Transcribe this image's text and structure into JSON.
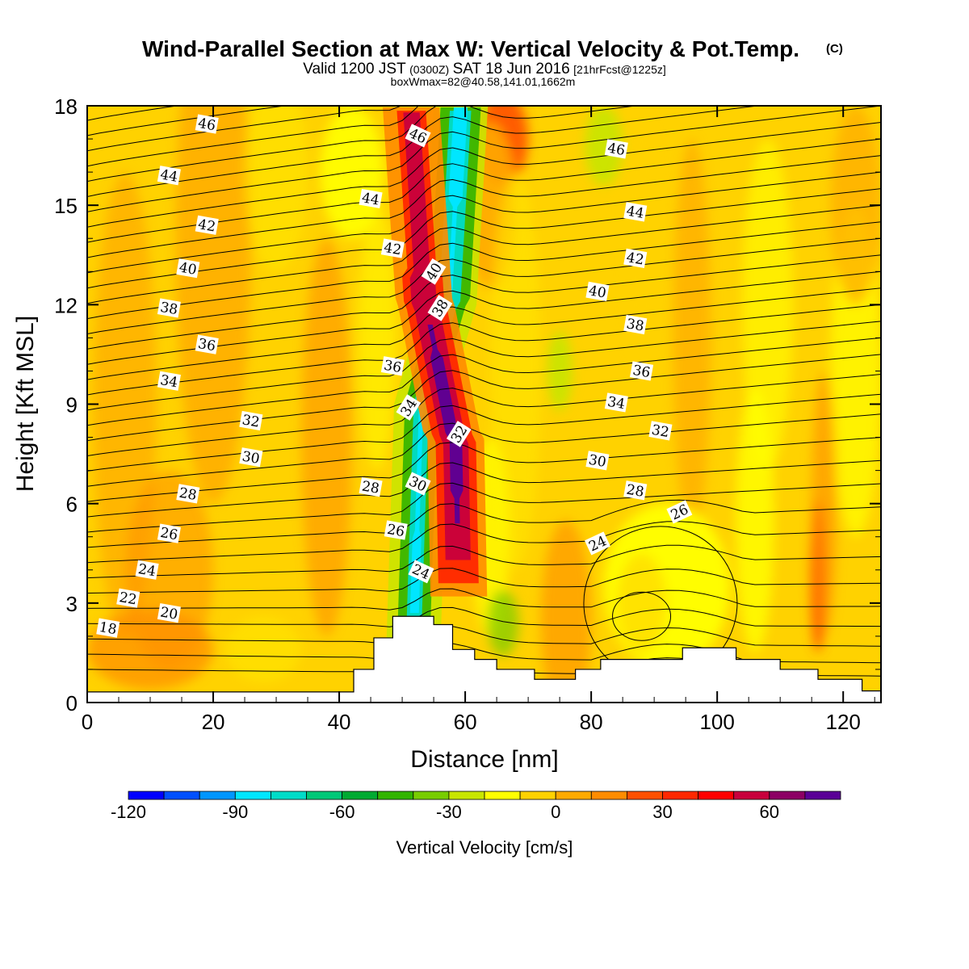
{
  "title": "Wind-Parallel Section at Max W: Vertical Velocity & Pot.Temp.",
  "title_mark": "(C)",
  "subtitle": {
    "valid_prefix": "Valid 1200 JST",
    "utc": "(0300Z)",
    "date": "SAT 18 Jun 2016",
    "forecast": "[21hrFcst@1225z]"
  },
  "boxwmax": "boxWmax=82@40.58,141.01,1662m",
  "chart_data": {
    "type": "heatmap",
    "x_label": "Distance [nm]",
    "y_label": "Height [Kft MSL]",
    "xlim": [
      0,
      126
    ],
    "ylim": [
      0,
      18
    ],
    "x_ticks": [
      "0",
      "20",
      "40",
      "60",
      "80",
      "100",
      "120"
    ],
    "y_ticks": [
      "0",
      "3",
      "6",
      "9",
      "12",
      "15",
      "18"
    ],
    "colorbar": {
      "title": "Vertical Velocity [cm/s]",
      "min": -120,
      "max": 80,
      "step": 10,
      "colors": [
        "#0000ff",
        "#0050ff",
        "#0096ff",
        "#00e6ff",
        "#00dcc8",
        "#00c878",
        "#00aa32",
        "#32b400",
        "#78cd00",
        "#c8e600",
        "#ffff00",
        "#ffd200",
        "#ffaa00",
        "#ff8c00",
        "#ff5000",
        "#ff2800",
        "#ff0000",
        "#c8003c",
        "#8c0064",
        "#5a0096"
      ],
      "tick_labels": [
        "-120",
        "-90",
        "-60",
        "-30",
        "0",
        "30",
        "60"
      ]
    },
    "theta_contours": [
      {
        "label": "46",
        "x": 19,
        "y": 17.45
      },
      {
        "label": "46",
        "x": 52.5,
        "y": 17.1
      },
      {
        "label": "46",
        "x": 84,
        "y": 16.7
      },
      {
        "label": "44",
        "x": 13,
        "y": 15.9
      },
      {
        "label": "44",
        "x": 45,
        "y": 15.2
      },
      {
        "label": "44",
        "x": 87,
        "y": 14.8
      },
      {
        "label": "42",
        "x": 19,
        "y": 14.4
      },
      {
        "label": "42",
        "x": 48.5,
        "y": 13.7
      },
      {
        "label": "42",
        "x": 87,
        "y": 13.4
      },
      {
        "label": "40",
        "x": 16,
        "y": 13.1
      },
      {
        "label": "40",
        "x": 55,
        "y": 13.0
      },
      {
        "label": "40",
        "x": 81,
        "y": 12.4
      },
      {
        "label": "38",
        "x": 13,
        "y": 11.9
      },
      {
        "label": "38",
        "x": 56,
        "y": 11.9
      },
      {
        "label": "38",
        "x": 87,
        "y": 11.4
      },
      {
        "label": "36",
        "x": 19,
        "y": 10.8
      },
      {
        "label": "36",
        "x": 48.5,
        "y": 10.15
      },
      {
        "label": "36",
        "x": 88,
        "y": 10.0
      },
      {
        "label": "34",
        "x": 13,
        "y": 9.7
      },
      {
        "label": "34",
        "x": 51,
        "y": 8.9
      },
      {
        "label": "34",
        "x": 84,
        "y": 9.05
      },
      {
        "label": "32",
        "x": 26,
        "y": 8.5
      },
      {
        "label": "32",
        "x": 59,
        "y": 8.1
      },
      {
        "label": "32",
        "x": 91,
        "y": 8.2
      },
      {
        "label": "30",
        "x": 26,
        "y": 7.4
      },
      {
        "label": "30",
        "x": 52.5,
        "y": 6.6
      },
      {
        "label": "30",
        "x": 81,
        "y": 7.3
      },
      {
        "label": "28",
        "x": 16,
        "y": 6.3
      },
      {
        "label": "28",
        "x": 45,
        "y": 6.5
      },
      {
        "label": "28",
        "x": 87,
        "y": 6.4
      },
      {
        "label": "26",
        "x": 13,
        "y": 5.1
      },
      {
        "label": "26",
        "x": 49,
        "y": 5.2
      },
      {
        "label": "26",
        "x": 94,
        "y": 5.75
      },
      {
        "label": "24",
        "x": 9.5,
        "y": 4.0
      },
      {
        "label": "24",
        "x": 53,
        "y": 3.95
      },
      {
        "label": "24",
        "x": 81,
        "y": 4.8
      },
      {
        "label": "22",
        "x": 6.5,
        "y": 3.15
      },
      {
        "label": "20",
        "x": 13,
        "y": 2.7
      },
      {
        "label": "18",
        "x": 3.3,
        "y": 2.25
      }
    ],
    "terrain_kft": [
      [
        42.3,
        0.32
      ],
      [
        42.3,
        1.0
      ],
      [
        45.5,
        1.0
      ],
      [
        45.5,
        1.95
      ],
      [
        48.5,
        1.95
      ],
      [
        48.5,
        2.6
      ],
      [
        55,
        2.6
      ],
      [
        55,
        2.35
      ],
      [
        58,
        2.35
      ],
      [
        58,
        1.6
      ],
      [
        61.5,
        1.6
      ],
      [
        61.5,
        1.3
      ],
      [
        65,
        1.3
      ],
      [
        65,
        1.0
      ],
      [
        71,
        1.0
      ],
      [
        71,
        0.7
      ],
      [
        77.5,
        0.7
      ],
      [
        77.5,
        1.0
      ],
      [
        81.5,
        1.0
      ],
      [
        81.5,
        1.3
      ],
      [
        94.5,
        1.3
      ],
      [
        94.5,
        1.65
      ],
      [
        103,
        1.65
      ],
      [
        103,
        1.3
      ],
      [
        110,
        1.3
      ],
      [
        110,
        1.0
      ],
      [
        116,
        1.0
      ],
      [
        116,
        0.7
      ],
      [
        123,
        0.7
      ],
      [
        123,
        0.35
      ],
      [
        126,
        0.35
      ]
    ]
  }
}
